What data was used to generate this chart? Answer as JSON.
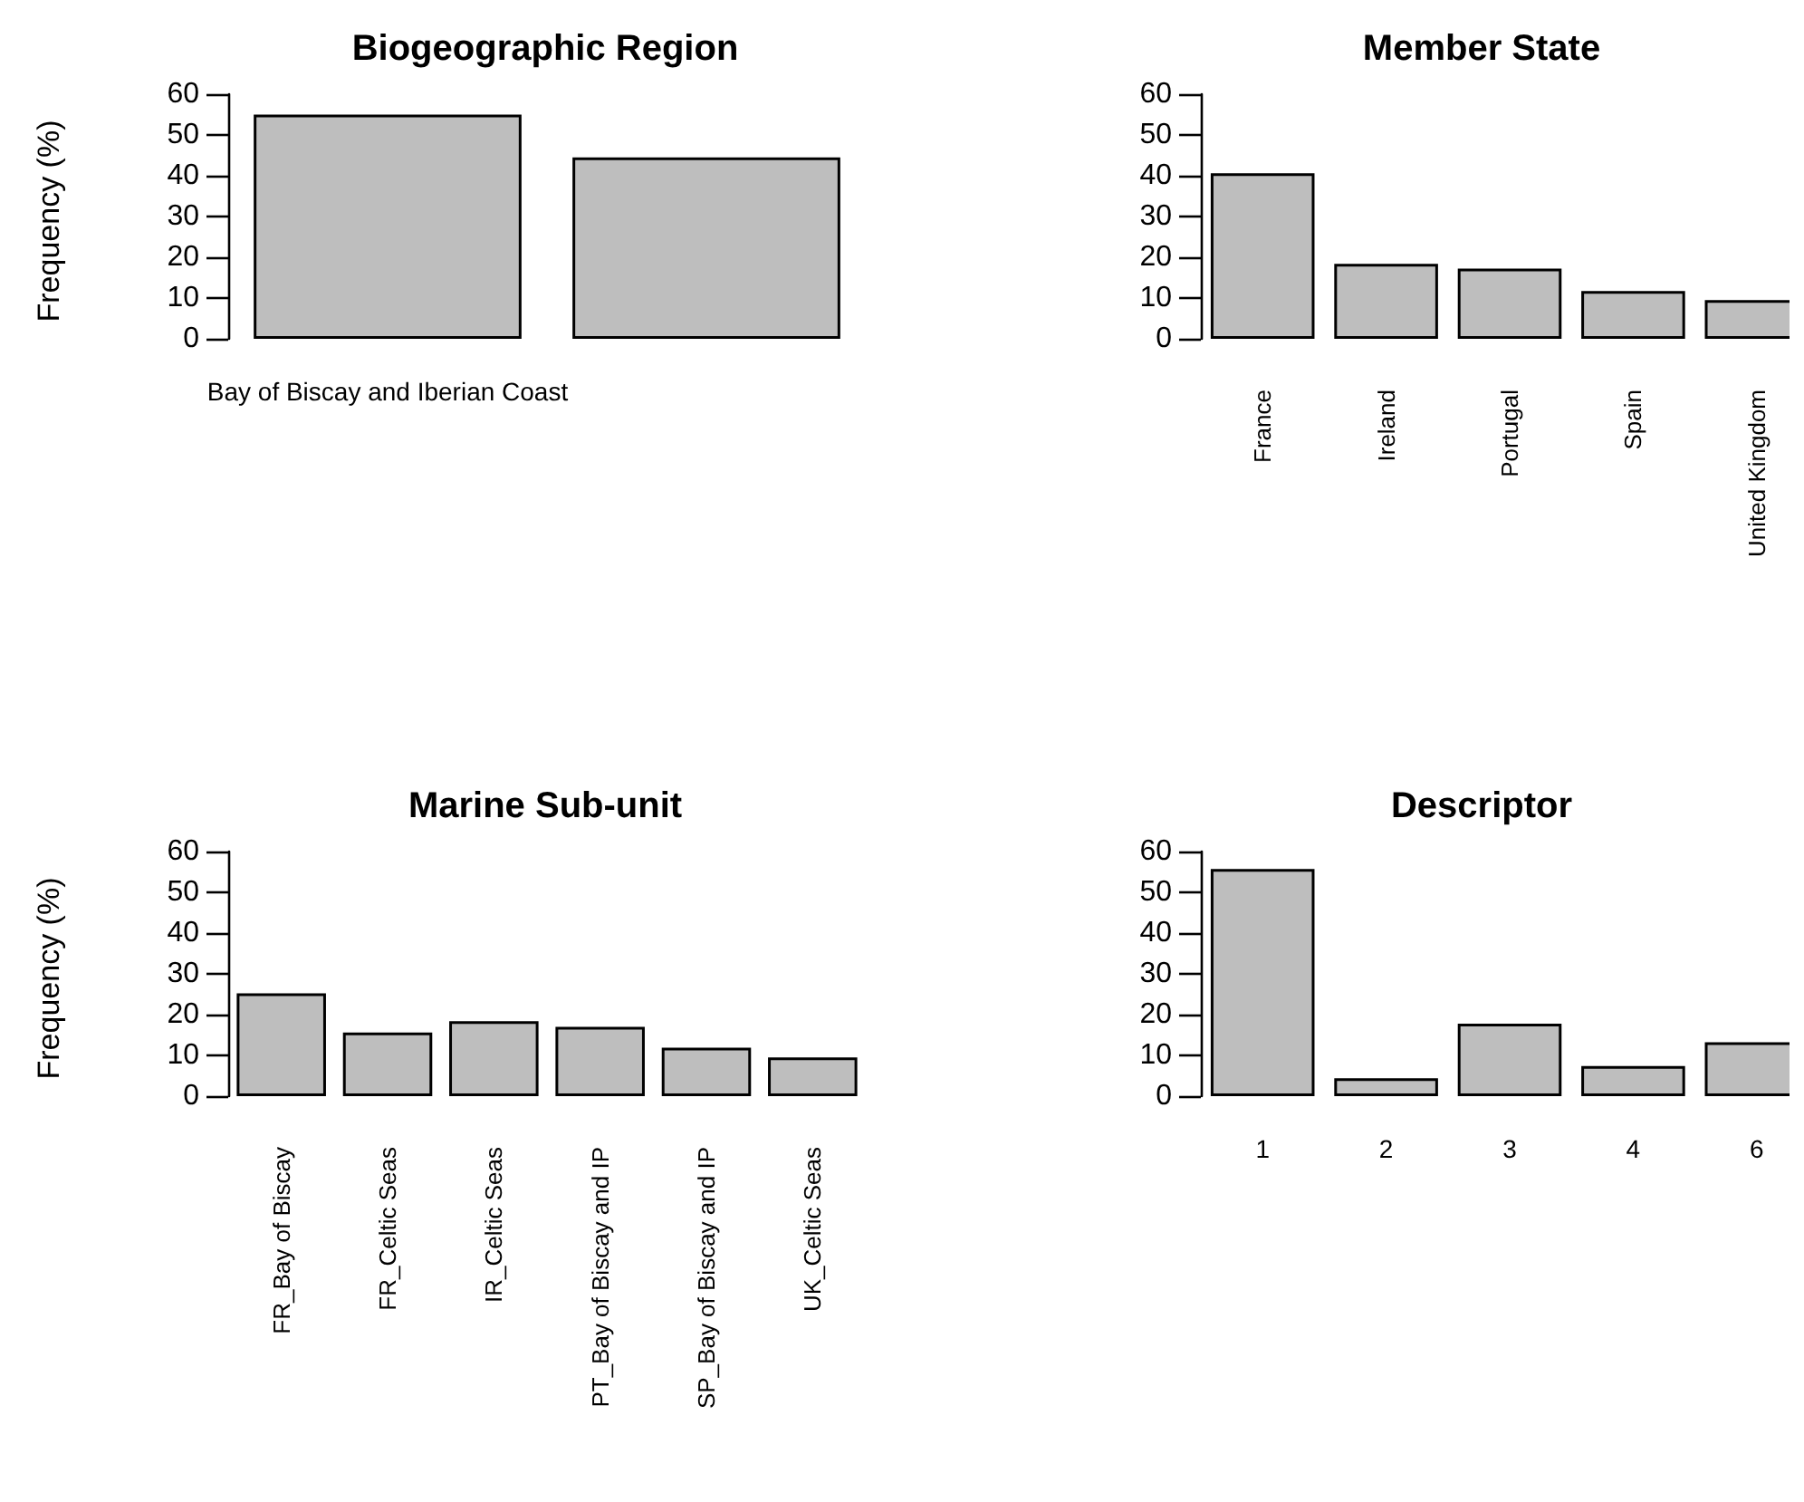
{
  "chart_data": [
    {
      "type": "bar",
      "title": "Biogeographic Region",
      "ylabel": "Frequency (%)",
      "categories": [
        "Bay of Biscay and Iberian Coast",
        null
      ],
      "values": [
        55,
        44.5
      ],
      "color": "#bebebe",
      "ylim": [
        0,
        60
      ],
      "yticks": [
        0,
        10,
        20,
        30,
        40,
        50,
        60
      ],
      "grid": false
    },
    {
      "type": "bar",
      "title": "Member State",
      "categories": [
        "France",
        "Ireland",
        "Portugal",
        "Spain",
        "United Kingdom"
      ],
      "values": [
        40.6,
        18.4,
        17.2,
        11.7,
        9.5
      ],
      "color": "#bebebe",
      "ylim": [
        0,
        60
      ],
      "yticks": [
        0,
        10,
        20,
        30,
        40,
        50,
        60
      ],
      "grid": false
    },
    {
      "type": "bar",
      "title": "Marine Sub-unit",
      "ylabel": "Frequency (%)",
      "categories": [
        "FR_Bay of Biscay",
        "FR_Celtic Seas",
        "IR_Celtic Seas",
        "PT_Bay of Biscay and IP",
        "SP_Bay of Biscay and IP",
        "UK_Celtic Seas"
      ],
      "values": [
        25.2,
        15.6,
        18.4,
        17.0,
        11.9,
        9.5
      ],
      "color": "#bebebe",
      "ylim": [
        0,
        60
      ],
      "yticks": [
        0,
        10,
        20,
        30,
        40,
        50,
        60
      ],
      "grid": false
    },
    {
      "type": "bar",
      "title": "Descriptor",
      "categories": [
        "1",
        "2",
        "3",
        "4",
        "6"
      ],
      "values": [
        55.7,
        4.4,
        17.8,
        7.4,
        13.2
      ],
      "color": "#bebebe",
      "ylim": [
        0,
        60
      ],
      "yticks": [
        0,
        10,
        20,
        30,
        40,
        50,
        60
      ],
      "grid": false
    }
  ]
}
